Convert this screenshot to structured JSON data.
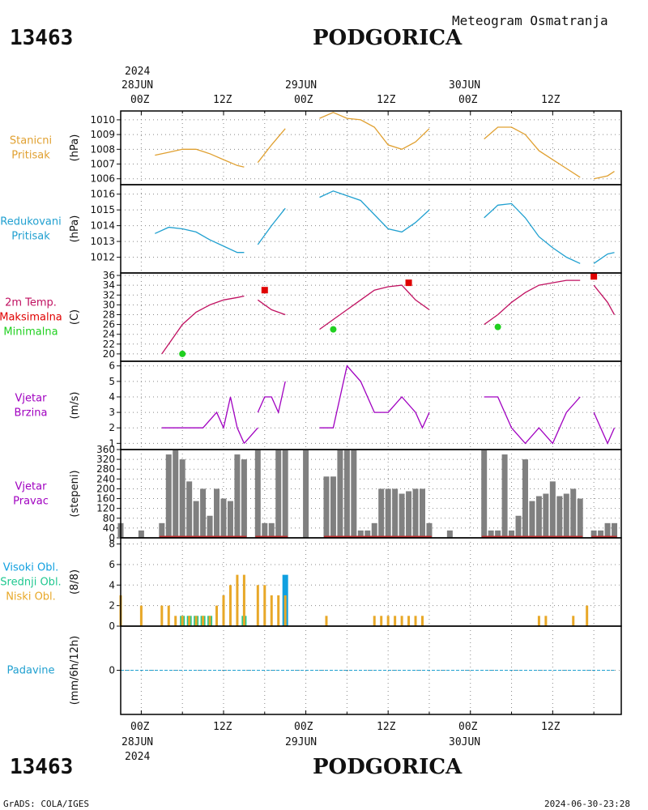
{
  "header": {
    "station_id": "13463",
    "station_name": "PODGORICA",
    "subtitle": "Meteogram Osmatranja"
  },
  "footer": {
    "credit": "GrADS: COLA/IGES",
    "timestamp": "2024-06-30-23:28"
  },
  "time_axis": {
    "year_label": "2024",
    "day_labels": [
      "28JUN",
      "29JUN",
      "30JUN"
    ],
    "hour_labels": [
      "00Z",
      "12Z",
      "00Z",
      "12Z",
      "00Z",
      "12Z"
    ],
    "hours_range": [
      -3,
      70
    ]
  },
  "colors": {
    "pressure": "#e0a030",
    "reduced": "#20a0d0",
    "tmax": "#e00000",
    "tmin": "#20d020",
    "temp_line": "#c01060",
    "wind": "#a000c0",
    "dir_bar": "#808080",
    "dir_base": "#c03030",
    "low_cloud": "#e8a828",
    "mid_cloud": "#20c890",
    "high_cloud": "#10a0e0",
    "precip": "#20a0d0",
    "grid": "#888888"
  },
  "panels": [
    {
      "key": "p1",
      "title_lines": [
        "Stanicni",
        "Pritisak"
      ],
      "title_colors": [
        "pressure",
        "pressure"
      ],
      "unit": "(hPa)"
    },
    {
      "key": "p2",
      "title_lines": [
        "Redukovani",
        "Pritisak"
      ],
      "title_colors": [
        "reduced",
        "reduced"
      ],
      "unit": "(hPa)"
    },
    {
      "key": "p3",
      "title_lines": [
        "2m Temp.",
        "Maksimalna",
        "Minimalna"
      ],
      "title_colors": [
        "temp_line",
        "tmax",
        "tmin"
      ],
      "unit": "(C)"
    },
    {
      "key": "p4",
      "title_lines": [
        "Vjetar",
        "Brzina"
      ],
      "title_colors": [
        "wind",
        "wind"
      ],
      "unit": "(m/s)"
    },
    {
      "key": "p5",
      "title_lines": [
        "Vjetar",
        "Pravac"
      ],
      "title_colors": [
        "wind",
        "wind"
      ],
      "unit": "(stepeni)"
    },
    {
      "key": "p6",
      "title_lines": [
        "Visoki Obl.",
        "Srednji Obl.",
        "Niski Obl."
      ],
      "title_colors": [
        "high_cloud",
        "mid_cloud",
        "low_cloud"
      ],
      "unit": "(8/8)"
    },
    {
      "key": "p7",
      "title_lines": [
        "Padavine"
      ],
      "title_colors": [
        "precip"
      ],
      "unit": "(mm/6h/12h)"
    }
  ],
  "chart_data": [
    {
      "type": "line",
      "panel": "p1",
      "title": "Stanicni Pritisak",
      "ylabel": "(hPa)",
      "ylim": [
        1005.6,
        1010.6
      ],
      "yticks": [
        1006,
        1007,
        1008,
        1009,
        1010
      ],
      "series": [
        {
          "x": [
            2,
            4,
            6,
            8,
            10,
            12,
            14,
            15
          ],
          "y": [
            1007.6,
            1007.8,
            1008.0,
            1008.0,
            1007.7,
            1007.3,
            1006.9,
            1006.8
          ]
        },
        {
          "x": [
            17,
            19,
            21
          ],
          "y": [
            1007.1,
            1008.3,
            1009.4
          ]
        },
        {
          "x": [
            26,
            28,
            30,
            32,
            34,
            36,
            38,
            40,
            42
          ],
          "y": [
            1010.1,
            1010.5,
            1010.1,
            1010.0,
            1009.5,
            1008.3,
            1008.0,
            1008.5,
            1009.4
          ]
        },
        {
          "x": [
            50,
            52,
            54,
            56,
            58,
            60,
            62,
            64
          ],
          "y": [
            1008.7,
            1009.5,
            1009.5,
            1009.0,
            1007.9,
            1007.3,
            1006.7,
            1006.1
          ]
        },
        {
          "x": [
            66,
            68,
            69
          ],
          "y": [
            1006.0,
            1006.2,
            1006.5
          ]
        }
      ]
    },
    {
      "type": "line",
      "panel": "p2",
      "title": "Redukovani Pritisak",
      "ylabel": "(hPa)",
      "ylim": [
        1011.0,
        1016.6
      ],
      "yticks": [
        1012,
        1013,
        1014,
        1015,
        1016
      ],
      "series": [
        {
          "x": [
            2,
            4,
            6,
            8,
            10,
            12,
            14,
            15
          ],
          "y": [
            1013.5,
            1013.9,
            1013.8,
            1013.6,
            1013.1,
            1012.7,
            1012.3,
            1012.3
          ]
        },
        {
          "x": [
            17,
            19,
            21
          ],
          "y": [
            1012.8,
            1014.0,
            1015.1
          ]
        },
        {
          "x": [
            26,
            28,
            30,
            32,
            34,
            36,
            38,
            40,
            42
          ],
          "y": [
            1015.8,
            1016.2,
            1015.9,
            1015.6,
            1014.7,
            1013.8,
            1013.6,
            1014.2,
            1015.0
          ]
        },
        {
          "x": [
            50,
            52,
            54,
            56,
            58,
            60,
            62,
            64
          ],
          "y": [
            1014.5,
            1015.3,
            1015.4,
            1014.5,
            1013.3,
            1012.6,
            1012.0,
            1011.6
          ]
        },
        {
          "x": [
            66,
            68,
            69
          ],
          "y": [
            1011.6,
            1012.2,
            1012.3
          ]
        }
      ]
    },
    {
      "type": "line",
      "panel": "p3",
      "title": "2m Temp.",
      "ylabel": "(C)",
      "ylim": [
        18.5,
        36.5
      ],
      "yticks": [
        20,
        22,
        24,
        26,
        28,
        30,
        32,
        34,
        36
      ],
      "series": [
        {
          "name": "2m Temp.",
          "x": [
            3,
            4,
            6,
            8,
            10,
            12,
            14,
            15
          ],
          "y": [
            20.0,
            22.0,
            26.0,
            28.5,
            30.0,
            31.0,
            31.5,
            31.8
          ]
        },
        {
          "name": "2m Temp.",
          "x": [
            17,
            19,
            21
          ],
          "y": [
            31.0,
            29.0,
            28.0
          ]
        },
        {
          "name": "2m Temp.",
          "x": [
            26,
            28,
            30,
            32,
            34,
            36,
            38,
            40,
            42
          ],
          "y": [
            25.0,
            27.0,
            29.0,
            31.0,
            33.0,
            33.7,
            34.0,
            31.0,
            29.0
          ]
        },
        {
          "name": "2m Temp.",
          "x": [
            50,
            52,
            54,
            56,
            58,
            60,
            62,
            64
          ],
          "y": [
            26.0,
            28.0,
            30.5,
            32.5,
            34.0,
            34.5,
            35.0,
            35.0
          ]
        },
        {
          "name": "2m Temp.",
          "x": [
            66,
            68,
            69
          ],
          "y": [
            34.0,
            30.5,
            28.0
          ]
        }
      ],
      "maximum_points": [
        {
          "x": 18,
          "y": 33
        },
        {
          "x": 39,
          "y": 34.5
        },
        {
          "x": 66,
          "y": 35.8
        }
      ],
      "minimum_points": [
        {
          "x": 6,
          "y": 20
        },
        {
          "x": 28,
          "y": 25
        },
        {
          "x": 52,
          "y": 25.5
        }
      ]
    },
    {
      "type": "line",
      "panel": "p4",
      "title": "Vjetar Brzina",
      "ylabel": "(m/s)",
      "ylim": [
        0.6,
        6.3
      ],
      "yticks": [
        1,
        2,
        3,
        4,
        5,
        6
      ],
      "series": [
        {
          "x": [
            3,
            6,
            9,
            11,
            12,
            13,
            14,
            15
          ],
          "y": [
            2,
            2,
            2,
            3,
            2,
            4,
            2,
            1
          ]
        },
        {
          "x": [
            15,
            17
          ],
          "y": [
            1,
            2
          ]
        },
        {
          "x": [
            17,
            18,
            19,
            20,
            21
          ],
          "y": [
            3,
            4,
            4,
            3,
            5
          ]
        },
        {
          "x": [
            26,
            28,
            30,
            32,
            34,
            36,
            38,
            40,
            41,
            42
          ],
          "y": [
            2,
            2,
            6,
            5,
            3,
            3,
            4,
            3,
            2,
            3
          ]
        },
        {
          "x": [
            50,
            52,
            54,
            56,
            58,
            60,
            62,
            64
          ],
          "y": [
            4,
            4,
            2,
            1,
            2,
            1,
            3,
            4
          ]
        },
        {
          "x": [
            66,
            68,
            69
          ],
          "y": [
            3,
            1,
            2
          ]
        }
      ]
    },
    {
      "type": "bar",
      "panel": "p5",
      "title": "Vjetar Pravac",
      "ylabel": "(stepeni)",
      "ylim": [
        0,
        360
      ],
      "yticks": [
        0,
        40,
        80,
        120,
        160,
        200,
        240,
        280,
        320,
        360
      ],
      "x": [
        -3,
        0,
        3,
        4,
        5,
        6,
        7,
        8,
        9,
        10,
        11,
        12,
        13,
        14,
        15,
        17,
        18,
        19,
        20,
        21,
        24,
        27,
        28,
        29,
        30,
        31,
        32,
        33,
        34,
        35,
        36,
        37,
        38,
        39,
        40,
        41,
        42,
        45,
        50,
        51,
        52,
        53,
        54,
        55,
        56,
        57,
        58,
        59,
        60,
        61,
        62,
        63,
        64,
        66,
        67,
        68,
        69
      ],
      "values": [
        60,
        30,
        60,
        340,
        360,
        320,
        230,
        150,
        200,
        90,
        200,
        160,
        150,
        340,
        320,
        360,
        60,
        60,
        360,
        360,
        360,
        250,
        250,
        360,
        360,
        360,
        30,
        30,
        60,
        200,
        200,
        200,
        180,
        190,
        200,
        200,
        60,
        30,
        360,
        30,
        30,
        340,
        30,
        90,
        320,
        150,
        170,
        180,
        230,
        170,
        180,
        200,
        160,
        30,
        30,
        60,
        60
      ]
    },
    {
      "type": "bar",
      "panel": "p6",
      "title": "Visoki Obl. / Srednji Obl. / Niski Obl.",
      "ylabel": "(8/8)",
      "ylim": [
        0,
        8.6
      ],
      "yticks": [
        0,
        2,
        4,
        6,
        8
      ],
      "series": [
        {
          "name": "Niski Obl.",
          "x": [
            -3,
            0,
            3,
            4,
            5,
            6,
            7,
            8,
            9,
            10,
            11,
            12,
            13,
            14,
            15,
            17,
            18,
            19,
            20,
            21,
            27,
            34,
            35,
            36,
            37,
            38,
            39,
            40,
            41,
            58,
            59,
            63,
            65
          ],
          "values": [
            3,
            2,
            2,
            2,
            1,
            1,
            1,
            1,
            1,
            1,
            2,
            3,
            4,
            5,
            5,
            4,
            4,
            3,
            3,
            3,
            1,
            1,
            1,
            1,
            1,
            1,
            1,
            1,
            1,
            1,
            1,
            1,
            2
          ]
        },
        {
          "name": "Srednji Obl.",
          "x": [
            6,
            7,
            8,
            9,
            10,
            15
          ],
          "values": [
            1,
            1,
            1,
            1,
            1,
            1
          ]
        },
        {
          "name": "Visoki Obl.",
          "x": [
            21
          ],
          "values": [
            5
          ]
        }
      ]
    },
    {
      "type": "line",
      "panel": "p7",
      "title": "Padavine",
      "ylabel": "(mm/6h/12h)",
      "ylim": [
        -5,
        5
      ],
      "yticks": [
        0
      ],
      "series": [
        {
          "x": [
            -3,
            69
          ],
          "y": [
            0,
            0
          ]
        }
      ]
    }
  ]
}
